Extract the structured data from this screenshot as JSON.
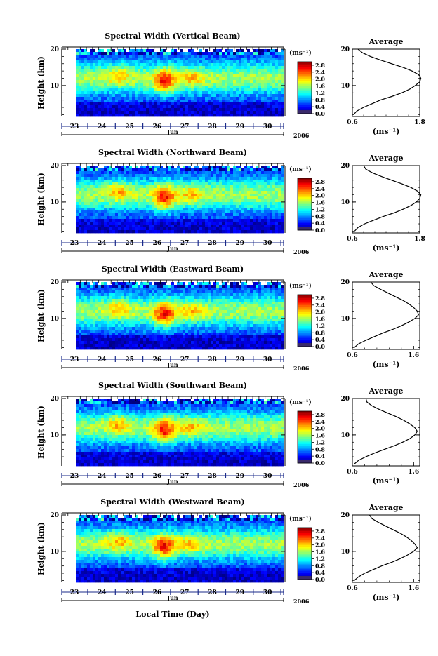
{
  "figure": {
    "xlabel": "Local Time (Day)",
    "month_label": "Jun",
    "year_label": "2006",
    "unit_label": "(ms⁻¹)",
    "avg_title": "Average"
  },
  "chart_data": [
    {
      "type": "heatmap",
      "title": "Spectral Width (Vertical Beam)",
      "ylabel": "Height (km)",
      "x_ticks": [
        "23",
        "24",
        "25",
        "26",
        "27",
        "28",
        "29",
        "30"
      ],
      "y_ticks": [
        "10",
        "20"
      ],
      "ylim": [
        1.5,
        20
      ],
      "colorbar_ticks": [
        "2.8",
        "2.4",
        "2.0",
        "1.6",
        "1.2",
        "0.8",
        "0.4",
        "0.0"
      ],
      "colorbar_range": [
        0.0,
        3.0
      ],
      "profile": {
        "title": "Average",
        "x_ticks": [
          "0.6",
          "1.8"
        ],
        "xlim": [
          0.6,
          1.8
        ],
        "xlabel": "(ms⁻¹)",
        "y_ticks": [
          "10",
          "20"
        ],
        "height": [
          2,
          3,
          4,
          5,
          6,
          7,
          8,
          9,
          10,
          11,
          12,
          13,
          14,
          15,
          16,
          17,
          18,
          19,
          20
        ],
        "value": [
          0.62,
          0.68,
          0.8,
          0.95,
          1.1,
          1.3,
          1.48,
          1.62,
          1.72,
          1.8,
          1.82,
          1.78,
          1.66,
          1.5,
          1.3,
          1.1,
          0.92,
          0.78,
          0.7
        ]
      }
    },
    {
      "type": "heatmap",
      "title": "Spectral Width (Northward Beam)",
      "ylabel": "Height (km)",
      "x_ticks": [
        "23",
        "24",
        "25",
        "26",
        "27",
        "28",
        "29",
        "30"
      ],
      "y_ticks": [
        "10",
        "20"
      ],
      "ylim": [
        1.5,
        20
      ],
      "colorbar_ticks": [
        "2.8",
        "2.4",
        "2.0",
        "1.6",
        "1.2",
        "0.8",
        "0.4",
        "0.0"
      ],
      "colorbar_range": [
        0.0,
        3.0
      ],
      "profile": {
        "title": "Average",
        "x_ticks": [
          "0.6",
          "1.8"
        ],
        "xlim": [
          0.6,
          1.8
        ],
        "xlabel": "(ms⁻¹)",
        "y_ticks": [
          "10",
          "20"
        ],
        "height": [
          2,
          3,
          4,
          5,
          6,
          7,
          8,
          9,
          10,
          11,
          12,
          13,
          14,
          15,
          16,
          17,
          18,
          19,
          20
        ],
        "value": [
          0.64,
          0.7,
          0.82,
          0.98,
          1.15,
          1.34,
          1.5,
          1.64,
          1.74,
          1.8,
          1.82,
          1.76,
          1.64,
          1.48,
          1.3,
          1.12,
          0.96,
          0.84,
          0.8
        ]
      }
    },
    {
      "type": "heatmap",
      "title": "Spectral Width (Eastward Beam)",
      "ylabel": "Height (km)",
      "x_ticks": [
        "23",
        "24",
        "25",
        "26",
        "27",
        "28",
        "29",
        "30"
      ],
      "y_ticks": [
        "10",
        "20"
      ],
      "ylim": [
        1.5,
        20
      ],
      "colorbar_ticks": [
        "2.8",
        "2.4",
        "2.0",
        "1.6",
        "1.2",
        "0.8",
        "0.4",
        "0.0"
      ],
      "colorbar_range": [
        0.0,
        3.0
      ],
      "profile": {
        "title": "Average",
        "x_ticks": [
          "0.6",
          "1.6"
        ],
        "xlim": [
          0.6,
          1.7
        ],
        "xlabel": "(ms⁻¹)",
        "y_ticks": [
          "10",
          "20"
        ],
        "height": [
          2,
          3,
          4,
          5,
          6,
          7,
          8,
          9,
          10,
          11,
          12,
          13,
          14,
          15,
          16,
          17,
          18,
          19,
          20
        ],
        "value": [
          0.63,
          0.7,
          0.82,
          0.96,
          1.1,
          1.26,
          1.4,
          1.52,
          1.62,
          1.68,
          1.66,
          1.6,
          1.52,
          1.42,
          1.3,
          1.18,
          1.06,
          0.95,
          0.9
        ]
      }
    },
    {
      "type": "heatmap",
      "title": "Spectral Width (Southward Beam)",
      "ylabel": "Height (km)",
      "x_ticks": [
        "23",
        "24",
        "25",
        "26",
        "27",
        "28",
        "29",
        "30"
      ],
      "y_ticks": [
        "10",
        "20"
      ],
      "ylim": [
        1.5,
        20
      ],
      "colorbar_ticks": [
        "2.8",
        "2.4",
        "2.0",
        "1.6",
        "1.2",
        "0.8",
        "0.4",
        "0.0"
      ],
      "colorbar_range": [
        0.0,
        3.0
      ],
      "profile": {
        "title": "Average",
        "x_ticks": [
          "0.6",
          "1.6"
        ],
        "xlim": [
          0.6,
          1.7
        ],
        "xlabel": "(ms⁻¹)",
        "y_ticks": [
          "10",
          "20"
        ],
        "height": [
          2,
          3,
          4,
          5,
          6,
          7,
          8,
          9,
          10,
          11,
          12,
          13,
          14,
          15,
          16,
          17,
          18,
          19,
          20
        ],
        "value": [
          0.63,
          0.7,
          0.82,
          0.96,
          1.12,
          1.28,
          1.42,
          1.54,
          1.62,
          1.66,
          1.62,
          1.54,
          1.44,
          1.32,
          1.18,
          1.04,
          0.92,
          0.84,
          0.82
        ]
      }
    },
    {
      "type": "heatmap",
      "title": "Spectral Width (Westward Beam)",
      "ylabel": "Height (km)",
      "x_ticks": [
        "23",
        "24",
        "25",
        "26",
        "27",
        "28",
        "29",
        "30"
      ],
      "y_ticks": [
        "10",
        "20"
      ],
      "ylim": [
        1.5,
        20
      ],
      "colorbar_ticks": [
        "2.8",
        "2.4",
        "2.0",
        "1.6",
        "1.2",
        "0.8",
        "0.4",
        "0.0"
      ],
      "colorbar_range": [
        0.0,
        3.0
      ],
      "profile": {
        "title": "Average",
        "x_ticks": [
          "0.6",
          "1.6"
        ],
        "xlim": [
          0.6,
          1.7
        ],
        "xlabel": "(ms⁻¹)",
        "y_ticks": [
          "10",
          "20"
        ],
        "height": [
          2,
          3,
          4,
          5,
          6,
          7,
          8,
          9,
          10,
          11,
          12,
          13,
          14,
          15,
          16,
          17,
          18,
          19,
          20
        ],
        "value": [
          0.63,
          0.7,
          0.8,
          0.94,
          1.08,
          1.24,
          1.38,
          1.5,
          1.6,
          1.66,
          1.62,
          1.56,
          1.48,
          1.38,
          1.26,
          1.14,
          1.02,
          0.92,
          0.88
        ]
      }
    }
  ]
}
